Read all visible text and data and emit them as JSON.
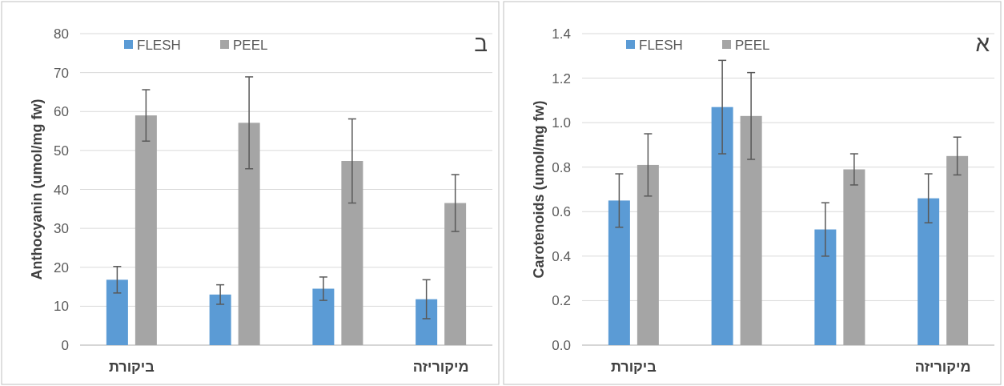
{
  "chart_data": [
    {
      "type": "bar",
      "ylabel": "Anthocyanin (umol/mg fw)",
      "annotations": [
        "ב"
      ],
      "categories": [
        "ביקורת",
        null,
        null,
        "מיקוריזה"
      ],
      "series": [
        {
          "name": "FLESH",
          "color": "#5b9bd5",
          "values": [
            16.8,
            13.0,
            14.5,
            11.8
          ],
          "errors": [
            3.4,
            2.5,
            3.0,
            5.0
          ]
        },
        {
          "name": "PEEL",
          "color": "#a5a5a5",
          "values": [
            59.0,
            57.1,
            47.3,
            36.5
          ],
          "errors": [
            6.6,
            11.8,
            10.8,
            7.3
          ]
        }
      ],
      "ylim": [
        0,
        80
      ],
      "yticks": [
        0,
        10,
        20,
        30,
        40,
        50,
        60,
        70,
        80
      ],
      "grid": "y",
      "legend": "top left"
    },
    {
      "type": "bar",
      "ylabel": "Carotenoids (umol/mg fw)",
      "annotations": [
        "א"
      ],
      "categories": [
        "ביקורת",
        null,
        null,
        "מיקוריזה"
      ],
      "series": [
        {
          "name": "FLESH",
          "color": "#5b9bd5",
          "values": [
            0.65,
            1.07,
            0.52,
            0.66
          ],
          "errors": [
            0.12,
            0.21,
            0.12,
            0.11
          ]
        },
        {
          "name": "PEEL",
          "color": "#a5a5a5",
          "values": [
            0.81,
            1.03,
            0.79,
            0.85
          ],
          "errors": [
            0.14,
            0.195,
            0.07,
            0.085
          ]
        }
      ],
      "ylim": [
        0,
        1.4
      ],
      "yticks": [
        {
          "value": 0,
          "label": "0.0"
        },
        {
          "value": 0.2,
          "label": "0.2"
        },
        {
          "value": 0.4,
          "label": "0.4"
        },
        {
          "value": 0.6,
          "label": "0.6"
        },
        {
          "value": 0.8,
          "label": "0.8"
        },
        {
          "value": 1.0,
          "label": "1.0"
        },
        {
          "value": 1.2,
          "label": "1.2"
        },
        {
          "value": 1.4,
          "label": "1.4"
        }
      ],
      "grid": "y",
      "legend": "top left"
    }
  ]
}
